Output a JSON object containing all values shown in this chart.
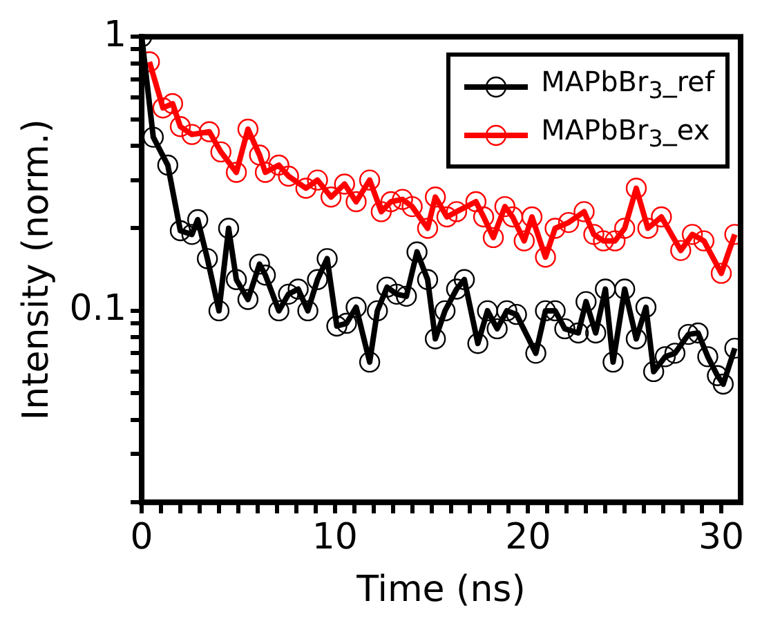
{
  "chart_data": {
    "type": "line",
    "xlabel": "Time (ns)",
    "ylabel": "Intensity (norm.)",
    "log": "y",
    "marker": "circle",
    "line_style": "solid",
    "legend": "top right",
    "grid": false,
    "xlim": [
      0,
      31
    ],
    "xticks": [
      0,
      {
        "value": 1,
        "label": null
      },
      {
        "value": 2,
        "label": null
      },
      {
        "value": 3,
        "label": null
      },
      {
        "value": 4,
        "label": null
      },
      {
        "value": 5,
        "label": null
      },
      {
        "value": 6,
        "label": null
      },
      {
        "value": 7,
        "label": null
      },
      {
        "value": 8,
        "label": null
      },
      {
        "value": 9,
        "label": null
      },
      10,
      {
        "value": 11,
        "label": null
      },
      {
        "value": 12,
        "label": null
      },
      {
        "value": 13,
        "label": null
      },
      {
        "value": 14,
        "label": null
      },
      {
        "value": 15,
        "label": null
      },
      {
        "value": 16,
        "label": null
      },
      {
        "value": 17,
        "label": null
      },
      {
        "value": 18,
        "label": null
      },
      {
        "value": 19,
        "label": null
      },
      20,
      {
        "value": 21,
        "label": null
      },
      {
        "value": 22,
        "label": null
      },
      {
        "value": 23,
        "label": null
      },
      {
        "value": 24,
        "label": null
      },
      {
        "value": 25,
        "label": null
      },
      {
        "value": 26,
        "label": null
      },
      {
        "value": 27,
        "label": null
      },
      {
        "value": 28,
        "label": null
      },
      {
        "value": 29,
        "label": null
      },
      30
    ],
    "ylim": [
      0.02,
      1
    ],
    "yticks": [
      {
        "value": 0.02,
        "label": null
      },
      {
        "value": 0.03,
        "label": null
      },
      {
        "value": 0.04,
        "label": null
      },
      {
        "value": 0.05,
        "label": null
      },
      {
        "value": 0.06,
        "label": null
      },
      {
        "value": 0.07,
        "label": null
      },
      {
        "value": 0.08,
        "label": null
      },
      {
        "value": 0.09,
        "label": null
      },
      0.1,
      {
        "value": 0.2,
        "label": null
      },
      {
        "value": 0.3,
        "label": null
      },
      {
        "value": 0.4,
        "label": null
      },
      {
        "value": 0.5,
        "label": null
      },
      {
        "value": 0.6,
        "label": null
      },
      {
        "value": 0.7,
        "label": null
      },
      {
        "value": 0.8,
        "label": null
      },
      {
        "value": 0.9,
        "label": null
      },
      1
    ],
    "series": [
      {
        "name": "MAPbBr$_{3}$_ref",
        "color": "#000000",
        "x": [
          0,
          0.6,
          1.35,
          2.0,
          2.6,
          2.9,
          3.4,
          4.0,
          4.5,
          4.9,
          5.5,
          6.1,
          6.4,
          7.1,
          7.6,
          8.1,
          8.6,
          9.1,
          9.6,
          10.1,
          10.6,
          11.1,
          11.8,
          12.2,
          12.7,
          13.2,
          13.7,
          14.25,
          14.8,
          15.2,
          15.7,
          16.3,
          16.7,
          17.4,
          17.9,
          18.4,
          18.9,
          19.4,
          20.4,
          20.9,
          21.4,
          21.9,
          22.6,
          23.0,
          23.5,
          24.0,
          24.4,
          25.0,
          25.6,
          26.1,
          26.5,
          27.1,
          27.6,
          28.3,
          28.8,
          29.3,
          29.8,
          30.1,
          30.7
        ],
        "values": [
          1.0,
          0.43,
          0.34,
          0.196,
          0.19,
          0.215,
          0.155,
          0.1,
          0.2,
          0.13,
          0.11,
          0.148,
          0.135,
          0.1,
          0.115,
          0.12,
          0.1,
          0.13,
          0.155,
          0.088,
          0.09,
          0.103,
          0.065,
          0.1,
          0.122,
          0.115,
          0.113,
          0.164,
          0.13,
          0.079,
          0.1,
          0.12,
          0.13,
          0.076,
          0.1,
          0.086,
          0.1,
          0.097,
          0.07,
          0.1,
          0.1,
          0.086,
          0.083,
          0.108,
          0.083,
          0.12,
          0.065,
          0.12,
          0.079,
          0.103,
          0.06,
          0.068,
          0.07,
          0.082,
          0.083,
          0.068,
          0.058,
          0.054,
          0.073
        ]
      },
      {
        "name": "MAPbBr$_{3}$_ex",
        "color": "#ff0000",
        "x": [
          0.4,
          1.1,
          1.6,
          2.0,
          2.6,
          3.5,
          4.1,
          4.9,
          5.5,
          6.1,
          6.4,
          7.1,
          7.6,
          8.5,
          9.1,
          9.8,
          10.5,
          11.1,
          11.8,
          12.4,
          12.9,
          13.5,
          14.0,
          14.8,
          15.2,
          15.8,
          16.3,
          17.3,
          17.7,
          18.2,
          18.8,
          19.2,
          19.8,
          20.2,
          20.9,
          21.4,
          22.1,
          22.9,
          23.4,
          23.9,
          24.5,
          25.0,
          25.6,
          26.2,
          26.9,
          27.9,
          28.5,
          29.1,
          30.0,
          30.7
        ],
        "values": [
          0.81,
          0.55,
          0.57,
          0.47,
          0.44,
          0.45,
          0.38,
          0.32,
          0.46,
          0.37,
          0.32,
          0.34,
          0.31,
          0.28,
          0.3,
          0.26,
          0.29,
          0.25,
          0.3,
          0.23,
          0.25,
          0.255,
          0.24,
          0.2,
          0.26,
          0.22,
          0.23,
          0.25,
          0.22,
          0.185,
          0.24,
          0.22,
          0.18,
          0.22,
          0.157,
          0.2,
          0.21,
          0.23,
          0.19,
          0.18,
          0.18,
          0.2,
          0.28,
          0.2,
          0.22,
          0.166,
          0.19,
          0.18,
          0.137,
          0.19
        ]
      }
    ]
  }
}
